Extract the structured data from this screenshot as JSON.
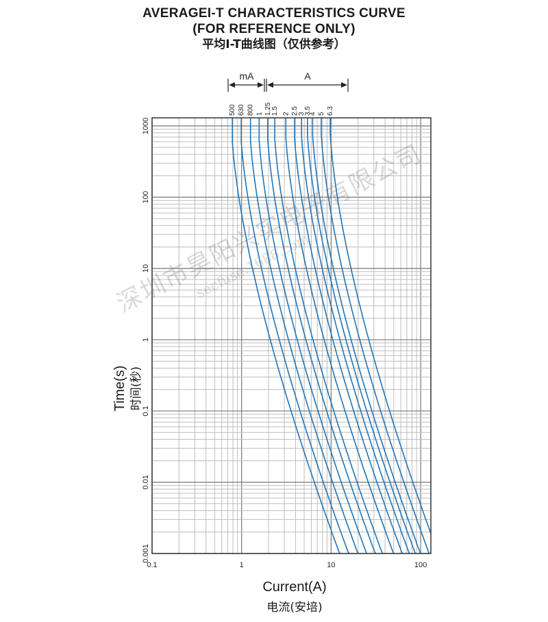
{
  "header": {
    "title_line1": "AVERAGEI-T CHARACTERISTICS CURVE",
    "title_line2": "(FOR REFERENCE ONLY)",
    "title_cn": "平均I-T曲线图（仅供参考）"
  },
  "axes": {
    "ylabel_en": "Time(s)",
    "ylabel_cn": "时间(秒)",
    "xlabel_en": "Current(A)",
    "xlabel_cn": "电流(安培)"
  },
  "units": {
    "ma": "mA",
    "a": "A"
  },
  "watermark": {
    "main": "深圳市昊阳兴实电子有限公司",
    "sub": "secfuse.1688.com"
  },
  "colors": {
    "curve": "#1f74b8",
    "grid": "#bdbdbd",
    "frame": "#333333"
  },
  "chart_data": {
    "type": "line",
    "x_scale": "log",
    "y_scale": "log",
    "xlim": [
      0.1,
      130
    ],
    "ylim": [
      0.001,
      1300
    ],
    "x_ticks": [
      {
        "value": 0.1,
        "label": "0.1"
      },
      {
        "value": 1,
        "label": "1"
      },
      {
        "value": 10,
        "label": "10"
      },
      {
        "value": 100,
        "label": "100"
      }
    ],
    "y_ticks": [
      {
        "value": 0.001,
        "label": "0.001"
      },
      {
        "value": 0.01,
        "label": "0.01"
      },
      {
        "value": 0.1,
        "label": "0.1"
      },
      {
        "value": 1,
        "label": "1"
      },
      {
        "value": 10,
        "label": "10"
      },
      {
        "value": 100,
        "label": "100"
      },
      {
        "value": 1000,
        "label": "1000"
      }
    ],
    "grid": true,
    "series": [
      {
        "name": "500",
        "rating_a": 0.5
      },
      {
        "name": "630",
        "rating_a": 0.63
      },
      {
        "name": "800",
        "rating_a": 0.8
      },
      {
        "name": "1",
        "rating_a": 1
      },
      {
        "name": "1.25",
        "rating_a": 1.25
      },
      {
        "name": "1.5",
        "rating_a": 1.5
      },
      {
        "name": "2",
        "rating_a": 2
      },
      {
        "name": "2.5",
        "rating_a": 2.5
      },
      {
        "name": "3",
        "rating_a": 3
      },
      {
        "name": "3.5",
        "rating_a": 3.5
      },
      {
        "name": "4",
        "rating_a": 4
      },
      {
        "name": "5",
        "rating_a": 5
      },
      {
        "name": "6.3",
        "rating_a": 6.3
      }
    ]
  }
}
